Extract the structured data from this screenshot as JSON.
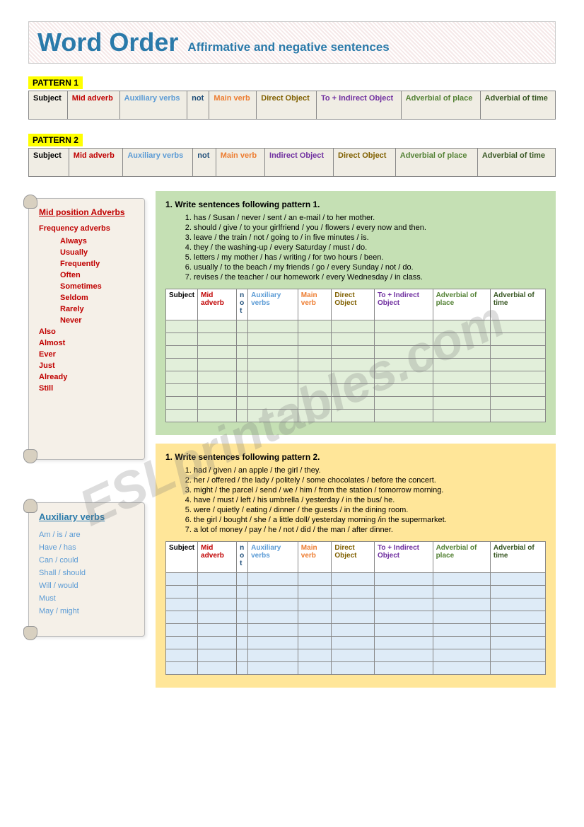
{
  "header": {
    "title": "Word Order",
    "subtitle": "Affirmative and negative sentences"
  },
  "pattern1": {
    "label": "PATTERN 1",
    "cols": [
      {
        "t": "Subject",
        "c": "c-black"
      },
      {
        "t": "Mid adverb",
        "c": "c-red"
      },
      {
        "t": "Auxiliary verbs",
        "c": "c-blue"
      },
      {
        "t": "not",
        "c": "c-darkblue"
      },
      {
        "t": "Main verb",
        "c": "c-orange"
      },
      {
        "t": "Direct Object",
        "c": "c-brown"
      },
      {
        "t": "To + Indirect Object",
        "c": "c-purple"
      },
      {
        "t": "Adverbial of place",
        "c": "c-green"
      },
      {
        "t": "Adverbial of time",
        "c": "c-darkgreen"
      }
    ]
  },
  "pattern2": {
    "label": "PATTERN 2",
    "cols": [
      {
        "t": "Subject",
        "c": "c-black"
      },
      {
        "t": "Mid adverb",
        "c": "c-red"
      },
      {
        "t": "Auxiliary verbs",
        "c": "c-blue"
      },
      {
        "t": "not",
        "c": "c-darkblue"
      },
      {
        "t": "Main verb",
        "c": "c-orange"
      },
      {
        "t": "Indirect Object",
        "c": "c-purple"
      },
      {
        "t": "Direct Object",
        "c": "c-brown"
      },
      {
        "t": "Adverbial of place",
        "c": "c-green"
      },
      {
        "t": "Adverbial of time",
        "c": "c-darkgreen"
      }
    ]
  },
  "scroll1": {
    "title": "Mid position Adverbs",
    "subtitle": "Frequency adverbs",
    "freq": [
      "Always",
      "Usually",
      "Frequently",
      "Often",
      "Sometimes",
      "Seldom",
      "Rarely",
      "Never"
    ],
    "other": [
      "Also",
      "Almost",
      "Ever",
      "Just",
      "Already",
      "Still"
    ]
  },
  "scroll2": {
    "title": "Auxiliary verbs",
    "items": [
      "Am  / is / are",
      "Have / has",
      "Can / could",
      "Shall  / should",
      "Will  / would",
      "Must",
      "May  / might"
    ]
  },
  "ex1": {
    "title": "1.   Write sentences following pattern 1.",
    "items": [
      "has / Susan / never / sent / an e-mail / to her mother.",
      "should / give / to your girlfriend / you / flowers / every now and then.",
      "leave / the train / not / going to / in five minutes / is.",
      "they / the washing-up / every Saturday / must / do.",
      "letters / my mother / has / writing / for two hours / been.",
      "usually / to the beach / my friends / go / every Sunday / not / do.",
      "revises / the teacher / our homework / every Wednesday / in class."
    ],
    "rows": 8
  },
  "ex2": {
    "title": "1.   Write sentences following pattern 2.",
    "items": [
      "had / given / an apple / the girl / they.",
      "her / offered / the lady / politely / some chocolates / before the concert.",
      "might / the parcel / send / we / him / from the station / tomorrow morning.",
      "have / must / left / his umbrella / yesterday / in the bus/ he.",
      "were / quietly / eating / dinner / the guests / in the dining room.",
      "the girl / bought / she / a little doll/ yesterday morning /in the supermarket.",
      "a lot of money / pay / he / not / did / the man / after dinner."
    ],
    "rows": 8
  },
  "ansCols": [
    {
      "t": "Subject",
      "c": "c-black"
    },
    {
      "t": "Mid adverb",
      "c": "c-red"
    },
    {
      "t": "not",
      "c": "c-darkblue",
      "narrow": true
    },
    {
      "t": "Auxiliary verbs",
      "c": "c-blue"
    },
    {
      "t": "Main verb",
      "c": "c-orange"
    },
    {
      "t": "Direct Object",
      "c": "c-brown"
    },
    {
      "t": "To + Indirect Object",
      "c": "c-purple"
    },
    {
      "t": "Adverbial of place",
      "c": "c-green"
    },
    {
      "t": "Adverbial of time",
      "c": "c-darkgreen"
    }
  ],
  "watermark": "ESLprintables.com"
}
